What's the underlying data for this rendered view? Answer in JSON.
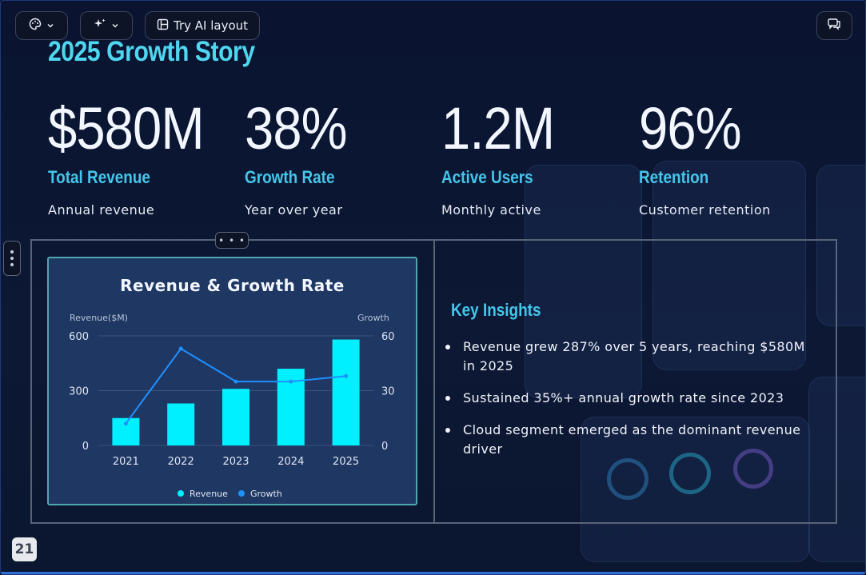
{
  "toolbar": {
    "theme_icon": "palette-icon",
    "ai_icon": "sparkle-icon",
    "try_ai_label": "Try AI layout",
    "comment_icon": "comment-icon"
  },
  "slide": {
    "title": "2025 Growth Story",
    "page_number": "21",
    "stats": [
      {
        "value": "$580M",
        "label": "Total Revenue",
        "sub": "Annual revenue"
      },
      {
        "value": "38%",
        "label": "Growth Rate",
        "sub": "Year over year"
      },
      {
        "value": "1.2M",
        "label": "Active Users",
        "sub": "Monthly active"
      },
      {
        "value": "96%",
        "label": "Retention",
        "sub": "Customer retention"
      }
    ],
    "insights_title": "Key Insights",
    "insights": [
      "Revenue grew 287% over 5 years, reaching $580M in 2025",
      "Sustained 35%+ annual growth rate since 2023",
      "Cloud segment emerged as the dominant revenue driver"
    ]
  },
  "chart_data": {
    "type": "bar",
    "title": "Revenue & Growth Rate",
    "categories": [
      "2021",
      "2022",
      "2023",
      "2024",
      "2025"
    ],
    "y_left_label": "Revenue($M)",
    "y_right_label": "Growth",
    "ylim_left": [
      0,
      600
    ],
    "ylim_right": [
      0,
      60
    ],
    "yticks_left": [
      "0",
      "300",
      "600"
    ],
    "yticks_right": [
      "0",
      "30",
      "60"
    ],
    "series": [
      {
        "name": "Revenue",
        "type": "bar",
        "axis": "left",
        "color": "#00f0ff",
        "values": [
          150,
          230,
          310,
          420,
          580
        ]
      },
      {
        "name": "Growth",
        "type": "line",
        "axis": "right",
        "color": "#1e90ff",
        "values": [
          12,
          53,
          35,
          35,
          38
        ]
      }
    ],
    "grid": true,
    "legend": "bottom"
  }
}
